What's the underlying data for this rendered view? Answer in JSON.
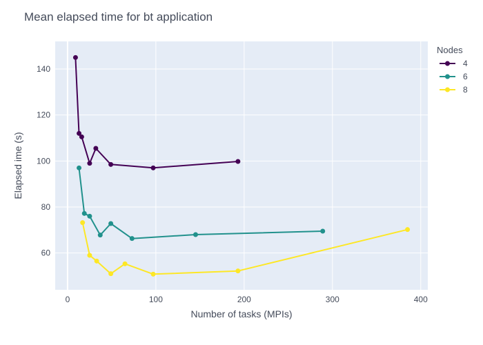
{
  "chart_data": {
    "type": "line",
    "title": "Mean elapsed time for bt application",
    "xlabel": "Number of tasks (MPIs)",
    "ylabel": "Elapsed ime (s)",
    "xlim": [
      -14,
      408
    ],
    "ylim": [
      44,
      152
    ],
    "xticks": [
      0,
      100,
      200,
      300,
      400
    ],
    "yticks": [
      60,
      80,
      100,
      120,
      140
    ],
    "grid": true,
    "legend": {
      "title": "Nodes",
      "position": "top-right"
    },
    "series": [
      {
        "name": "4",
        "color": "#440154",
        "points": [
          [
            9,
            145
          ],
          [
            13,
            112
          ],
          [
            16,
            110.5
          ],
          [
            25,
            99
          ],
          [
            32,
            105.5
          ],
          [
            49,
            98.5
          ],
          [
            97,
            97
          ],
          [
            193,
            99.8
          ]
        ]
      },
      {
        "name": "6",
        "color": "#21918c",
        "points": [
          [
            13,
            97
          ],
          [
            19,
            77.2
          ],
          [
            25,
            76
          ],
          [
            37,
            67.8
          ],
          [
            49,
            72.8
          ],
          [
            73,
            66.3
          ],
          [
            145,
            68
          ],
          [
            289,
            69.5
          ]
        ]
      },
      {
        "name": "8",
        "color": "#fde725",
        "points": [
          [
            17,
            73.2
          ],
          [
            25,
            59
          ],
          [
            33,
            56.5
          ],
          [
            49,
            51
          ],
          [
            65,
            55.3
          ],
          [
            97,
            50.8
          ],
          [
            193,
            52.2
          ],
          [
            385,
            70.2
          ]
        ]
      }
    ]
  }
}
